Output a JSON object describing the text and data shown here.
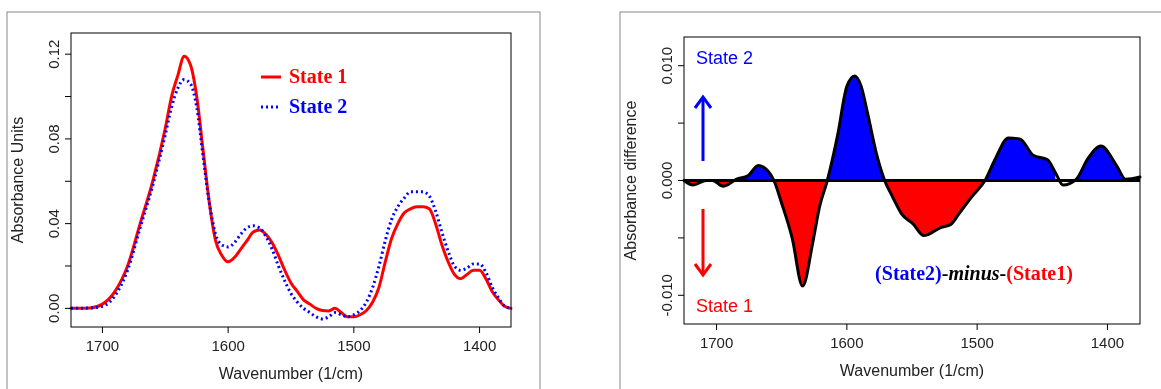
{
  "chart_data": [
    {
      "type": "line",
      "xlabel": "Wavenumber (1/cm)",
      "ylabel": "Absorbance Units",
      "xlim": [
        1725,
        1375
      ],
      "ylim": [
        -0.0088,
        0.13
      ],
      "xticks": [
        1700,
        1600,
        1500,
        1400
      ],
      "yticks": [
        {
          "value": 0,
          "label": "0.00"
        },
        {
          "value": 0.02,
          "label": null
        },
        {
          "value": 0.04,
          "label": "0.04"
        },
        {
          "value": 0.06,
          "label": null
        },
        {
          "value": 0.08,
          "label": "0.08"
        },
        {
          "value": 0.1,
          "label": null
        },
        {
          "value": 0.12,
          "label": "0.12"
        }
      ],
      "legend": "top",
      "x": [
        1725,
        1710,
        1700,
        1690,
        1680,
        1670,
        1660,
        1650,
        1645,
        1640,
        1635,
        1630,
        1625,
        1620,
        1615,
        1610,
        1605,
        1600,
        1595,
        1590,
        1585,
        1580,
        1575,
        1570,
        1565,
        1560,
        1555,
        1550,
        1545,
        1540,
        1535,
        1530,
        1525,
        1520,
        1515,
        1510,
        1505,
        1500,
        1495,
        1490,
        1485,
        1480,
        1475,
        1470,
        1465,
        1460,
        1455,
        1450,
        1445,
        1440,
        1435,
        1430,
        1425,
        1420,
        1415,
        1410,
        1405,
        1400,
        1395,
        1390,
        1385,
        1380,
        1375
      ],
      "series": [
        {
          "name": "State 1",
          "color": "#ff0000",
          "line_style": "solid",
          "values": [
            0,
            0.0002,
            0.002,
            0.008,
            0.02,
            0.04,
            0.06,
            0.085,
            0.1,
            0.11,
            0.119,
            0.115,
            0.1,
            0.075,
            0.05,
            0.032,
            0.025,
            0.022,
            0.024,
            0.028,
            0.032,
            0.036,
            0.037,
            0.035,
            0.031,
            0.025,
            0.018,
            0.012,
            0.008,
            0.004,
            0.002,
            0,
            -0.001,
            -0.0012,
            0,
            -0.002,
            -0.004,
            -0.004,
            -0.003,
            -0.001,
            0.003,
            0.01,
            0.022,
            0.033,
            0.04,
            0.045,
            0.047,
            0.048,
            0.048,
            0.047,
            0.04,
            0.03,
            0.022,
            0.016,
            0.014,
            0.016,
            0.018,
            0.018,
            0.014,
            0.008,
            0.004,
            0.001,
            0
          ]
        },
        {
          "name": "State 2",
          "color": "#0000ff",
          "line_style": "dotted",
          "values": [
            0,
            0.0002,
            0.001,
            0.006,
            0.018,
            0.038,
            0.058,
            0.082,
            0.095,
            0.104,
            0.108,
            0.106,
            0.095,
            0.072,
            0.05,
            0.035,
            0.03,
            0.029,
            0.031,
            0.035,
            0.038,
            0.039,
            0.038,
            0.034,
            0.028,
            0.02,
            0.013,
            0.007,
            0.003,
            0,
            -0.002,
            -0.004,
            -0.005,
            -0.004,
            -0.002,
            -0.003,
            -0.004,
            -0.003,
            -0.001,
            0.003,
            0.01,
            0.02,
            0.032,
            0.042,
            0.048,
            0.052,
            0.055,
            0.055,
            0.055,
            0.053,
            0.046,
            0.036,
            0.027,
            0.02,
            0.018,
            0.019,
            0.021,
            0.021,
            0.017,
            0.01,
            0.005,
            0.001,
            0
          ]
        }
      ]
    },
    {
      "type": "area",
      "xlabel": "Wavenumber (1/cm)",
      "ylabel": "Absorbance difference",
      "xlim": [
        1725,
        1375
      ],
      "ylim": [
        -0.0125,
        0.0125
      ],
      "xticks": [
        1700,
        1600,
        1500,
        1400
      ],
      "yticks": [
        {
          "value": -0.01,
          "label": "-0.010"
        },
        {
          "value": -0.005,
          "label": null
        },
        {
          "value": 0,
          "label": "0.000"
        },
        {
          "value": 0.005,
          "label": null
        },
        {
          "value": 0.01,
          "label": "0.010"
        }
      ],
      "ref_lines": [
        {
          "axis": "y",
          "value": 0,
          "color": "#000000"
        }
      ],
      "annotations": [
        "State 2",
        "State 1",
        "(State2)-minus-(State1)"
      ],
      "x": [
        1725,
        1718,
        1708,
        1703,
        1695,
        1689,
        1685,
        1676,
        1668,
        1662,
        1656,
        1650,
        1642,
        1634,
        1626,
        1621,
        1615,
        1607,
        1600,
        1594,
        1589,
        1584,
        1577,
        1571,
        1565,
        1558,
        1549,
        1541,
        1528,
        1520,
        1514,
        1504,
        1494,
        1486,
        1476,
        1467,
        1457,
        1446,
        1440,
        1434,
        1424,
        1415,
        1405,
        1393,
        1386,
        1375
      ],
      "series": [
        {
          "type": "line",
          "color": "#000000",
          "values": [
            0,
            -0.0004,
            0,
            0,
            -0.0005,
            -0.0002,
            0.0001,
            0.0004,
            0.0013,
            0.001,
            0,
            -0.002,
            -0.005,
            -0.0092,
            -0.0053,
            -0.0023,
            0,
            0.004,
            0.0082,
            0.0091,
            0.0082,
            0.0058,
            0.0022,
            0,
            -0.0014,
            -0.0029,
            -0.0038,
            -0.0048,
            -0.0041,
            -0.0038,
            -0.0029,
            -0.0014,
            0,
            0.0019,
            0.0037,
            0.0036,
            0.0022,
            0.0018,
            0.0007,
            -0.0004,
            0.0001,
            0.0019,
            0.003,
            0.0013,
            0.0001,
            0.0003
          ]
        },
        {
          "color": "#0000ff",
          "values": [
            null,
            null,
            null,
            null,
            null,
            null,
            0.0001,
            0.0004,
            0.0013,
            0.001,
            0,
            null,
            null,
            null,
            null,
            null,
            0,
            0.004,
            0.0082,
            0.0091,
            0.0082,
            0.0058,
            0.0022,
            0,
            null,
            null,
            null,
            null,
            null,
            null,
            null,
            null,
            0,
            0.0019,
            0.0037,
            0.0036,
            0.0022,
            0.0018,
            0.0007,
            null,
            0.0001,
            0.0019,
            0.003,
            0.0013,
            0.0001,
            0.0003
          ]
        },
        {
          "color": "#ff0000",
          "values": [
            0,
            -0.0004,
            0,
            0,
            -0.0005,
            -0.0002,
            null,
            null,
            null,
            null,
            0,
            -0.002,
            -0.005,
            -0.0092,
            -0.0053,
            -0.0023,
            0,
            null,
            null,
            null,
            null,
            null,
            null,
            0,
            -0.0014,
            -0.0029,
            -0.0038,
            -0.0048,
            -0.0041,
            -0.0038,
            -0.0029,
            -0.0014,
            0,
            null,
            null,
            null,
            null,
            null,
            null,
            null,
            null,
            null,
            null,
            null,
            null,
            null
          ]
        }
      ]
    }
  ]
}
